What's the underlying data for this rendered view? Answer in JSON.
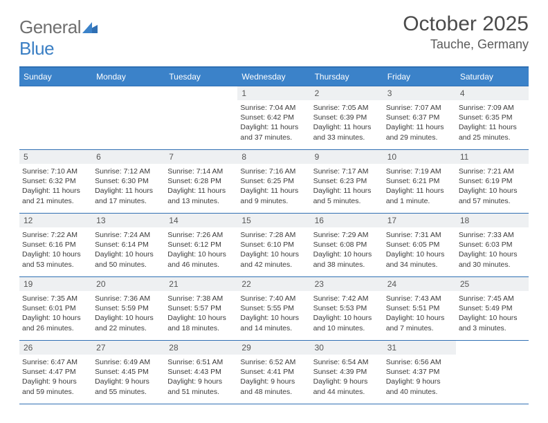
{
  "brand": {
    "name_part1": "General",
    "name_part2": "Blue"
  },
  "title": "October 2025",
  "location": "Tauche, Germany",
  "colors": {
    "header_bg": "#3b82c9",
    "header_text": "#ffffff",
    "rule": "#2f6fb3",
    "daynum_bg": "#eef0f2",
    "text": "#3a3a3a",
    "logo_gray": "#6f6f6f",
    "logo_blue": "#3b7fc4"
  },
  "day_headers": [
    "Sunday",
    "Monday",
    "Tuesday",
    "Wednesday",
    "Thursday",
    "Friday",
    "Saturday"
  ],
  "weeks": [
    [
      {
        "empty": true
      },
      {
        "empty": true
      },
      {
        "empty": true
      },
      {
        "num": "1",
        "sunrise": "7:04 AM",
        "sunset": "6:42 PM",
        "daylight": "11 hours and 37 minutes."
      },
      {
        "num": "2",
        "sunrise": "7:05 AM",
        "sunset": "6:39 PM",
        "daylight": "11 hours and 33 minutes."
      },
      {
        "num": "3",
        "sunrise": "7:07 AM",
        "sunset": "6:37 PM",
        "daylight": "11 hours and 29 minutes."
      },
      {
        "num": "4",
        "sunrise": "7:09 AM",
        "sunset": "6:35 PM",
        "daylight": "11 hours and 25 minutes."
      }
    ],
    [
      {
        "num": "5",
        "sunrise": "7:10 AM",
        "sunset": "6:32 PM",
        "daylight": "11 hours and 21 minutes."
      },
      {
        "num": "6",
        "sunrise": "7:12 AM",
        "sunset": "6:30 PM",
        "daylight": "11 hours and 17 minutes."
      },
      {
        "num": "7",
        "sunrise": "7:14 AM",
        "sunset": "6:28 PM",
        "daylight": "11 hours and 13 minutes."
      },
      {
        "num": "8",
        "sunrise": "7:16 AM",
        "sunset": "6:25 PM",
        "daylight": "11 hours and 9 minutes."
      },
      {
        "num": "9",
        "sunrise": "7:17 AM",
        "sunset": "6:23 PM",
        "daylight": "11 hours and 5 minutes."
      },
      {
        "num": "10",
        "sunrise": "7:19 AM",
        "sunset": "6:21 PM",
        "daylight": "11 hours and 1 minute."
      },
      {
        "num": "11",
        "sunrise": "7:21 AM",
        "sunset": "6:19 PM",
        "daylight": "10 hours and 57 minutes."
      }
    ],
    [
      {
        "num": "12",
        "sunrise": "7:22 AM",
        "sunset": "6:16 PM",
        "daylight": "10 hours and 53 minutes."
      },
      {
        "num": "13",
        "sunrise": "7:24 AM",
        "sunset": "6:14 PM",
        "daylight": "10 hours and 50 minutes."
      },
      {
        "num": "14",
        "sunrise": "7:26 AM",
        "sunset": "6:12 PM",
        "daylight": "10 hours and 46 minutes."
      },
      {
        "num": "15",
        "sunrise": "7:28 AM",
        "sunset": "6:10 PM",
        "daylight": "10 hours and 42 minutes."
      },
      {
        "num": "16",
        "sunrise": "7:29 AM",
        "sunset": "6:08 PM",
        "daylight": "10 hours and 38 minutes."
      },
      {
        "num": "17",
        "sunrise": "7:31 AM",
        "sunset": "6:05 PM",
        "daylight": "10 hours and 34 minutes."
      },
      {
        "num": "18",
        "sunrise": "7:33 AM",
        "sunset": "6:03 PM",
        "daylight": "10 hours and 30 minutes."
      }
    ],
    [
      {
        "num": "19",
        "sunrise": "7:35 AM",
        "sunset": "6:01 PM",
        "daylight": "10 hours and 26 minutes."
      },
      {
        "num": "20",
        "sunrise": "7:36 AM",
        "sunset": "5:59 PM",
        "daylight": "10 hours and 22 minutes."
      },
      {
        "num": "21",
        "sunrise": "7:38 AM",
        "sunset": "5:57 PM",
        "daylight": "10 hours and 18 minutes."
      },
      {
        "num": "22",
        "sunrise": "7:40 AM",
        "sunset": "5:55 PM",
        "daylight": "10 hours and 14 minutes."
      },
      {
        "num": "23",
        "sunrise": "7:42 AM",
        "sunset": "5:53 PM",
        "daylight": "10 hours and 10 minutes."
      },
      {
        "num": "24",
        "sunrise": "7:43 AM",
        "sunset": "5:51 PM",
        "daylight": "10 hours and 7 minutes."
      },
      {
        "num": "25",
        "sunrise": "7:45 AM",
        "sunset": "5:49 PM",
        "daylight": "10 hours and 3 minutes."
      }
    ],
    [
      {
        "num": "26",
        "sunrise": "6:47 AM",
        "sunset": "4:47 PM",
        "daylight": "9 hours and 59 minutes."
      },
      {
        "num": "27",
        "sunrise": "6:49 AM",
        "sunset": "4:45 PM",
        "daylight": "9 hours and 55 minutes."
      },
      {
        "num": "28",
        "sunrise": "6:51 AM",
        "sunset": "4:43 PM",
        "daylight": "9 hours and 51 minutes."
      },
      {
        "num": "29",
        "sunrise": "6:52 AM",
        "sunset": "4:41 PM",
        "daylight": "9 hours and 48 minutes."
      },
      {
        "num": "30",
        "sunrise": "6:54 AM",
        "sunset": "4:39 PM",
        "daylight": "9 hours and 44 minutes."
      },
      {
        "num": "31",
        "sunrise": "6:56 AM",
        "sunset": "4:37 PM",
        "daylight": "9 hours and 40 minutes."
      },
      {
        "empty": true
      }
    ]
  ],
  "labels": {
    "sunrise_prefix": "Sunrise: ",
    "sunset_prefix": "Sunset: ",
    "daylight_prefix": "Daylight: "
  }
}
